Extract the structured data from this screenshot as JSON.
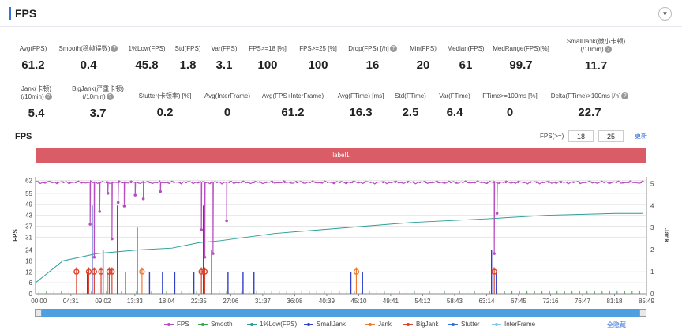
{
  "header": {
    "title": "FPS",
    "collapse_icon": "chevron-down-icon"
  },
  "stats_row1": [
    {
      "label": "Avg(FPS)",
      "value": "61.2",
      "help": false
    },
    {
      "label": "Smooth(稳帧得数)",
      "value": "0.4",
      "help": true
    },
    {
      "label": "1%Low(FPS)",
      "value": "45.8",
      "help": false
    },
    {
      "label": "Std(FPS)",
      "value": "1.8",
      "help": false
    },
    {
      "label": "Var(FPS)",
      "value": "3.1",
      "help": false
    },
    {
      "label": "FPS>=18 [%]",
      "value": "100",
      "help": false
    },
    {
      "label": "FPS>=25 [%]",
      "value": "100",
      "help": false
    },
    {
      "label": "Drop(FPS) [/h]",
      "value": "16",
      "help": true
    },
    {
      "label": "Min(FPS)",
      "value": "20",
      "help": false
    },
    {
      "label": "Median(FPS)",
      "value": "61",
      "help": false
    },
    {
      "label": "MedRange(FPS)[%]",
      "value": "99.7",
      "help": false
    },
    {
      "label": "SmallJank(微小卡顿)",
      "label2": "(/10min)",
      "value": "11.7",
      "help": true
    }
  ],
  "stats_row2": [
    {
      "label": "Jank(卡顿)",
      "label2": "(/10min)",
      "value": "5.4",
      "help": true
    },
    {
      "label": "BigJank(严重卡顿)",
      "label2": "(/10min)",
      "value": "3.7",
      "help": true
    },
    {
      "label": "Stutter(卡顿率) [%]",
      "value": "0.2",
      "help": false
    },
    {
      "label": "Avg(InterFrame)",
      "value": "0",
      "help": false
    },
    {
      "label": "Avg(FPS+InterFrame)",
      "value": "61.2",
      "help": false
    },
    {
      "label": "Avg(FTime) [ms]",
      "value": "16.3",
      "help": false
    },
    {
      "label": "Std(FTime)",
      "value": "2.5",
      "help": false
    },
    {
      "label": "Var(FTime)",
      "value": "6.4",
      "help": false
    },
    {
      "label": "FTime>=100ms [%]",
      "value": "0",
      "help": false
    },
    {
      "label": "Delta(FTime)>100ms [/h]",
      "value": "22.7",
      "help": true
    }
  ],
  "chart_title": "FPS",
  "threshold": {
    "label": "FPS(>=)",
    "v1": "18",
    "v2": "25",
    "update_label": "更新"
  },
  "label_band": "label1",
  "chart_data": {
    "type": "line",
    "y_left_label": "FPS",
    "y_right_label": "Jank",
    "y_left_ticks": [
      "0",
      "6",
      "12",
      "18",
      "24",
      "31",
      "37",
      "43",
      "49",
      "55",
      "62"
    ],
    "y_right_ticks": [
      "0",
      "1",
      "2",
      "3",
      "4",
      "5"
    ],
    "x_ticks": [
      "00:00",
      "04:31",
      "09:02",
      "13:33",
      "18:04",
      "22:35",
      "27:06",
      "31:37",
      "36:08",
      "40:39",
      "45:10",
      "49:41",
      "54:12",
      "58:43",
      "63:14",
      "67:45",
      "72:16",
      "76:47",
      "81:18",
      "85:49"
    ],
    "fps_baseline": 61,
    "fps_drops": [
      {
        "t": 8.0,
        "fps": 38
      },
      {
        "t": 8.6,
        "fps": 20
      },
      {
        "t": 9.4,
        "fps": 45
      },
      {
        "t": 10.6,
        "fps": 55
      },
      {
        "t": 11.2,
        "fps": 30
      },
      {
        "t": 12.1,
        "fps": 50
      },
      {
        "t": 13.0,
        "fps": 48
      },
      {
        "t": 14.6,
        "fps": 54
      },
      {
        "t": 15.8,
        "fps": 52
      },
      {
        "t": 18.3,
        "fps": 56
      },
      {
        "t": 24.3,
        "fps": 35
      },
      {
        "t": 24.8,
        "fps": 20
      },
      {
        "t": 26.0,
        "fps": 22
      },
      {
        "t": 28.0,
        "fps": 40
      },
      {
        "t": 67.2,
        "fps": 22
      },
      {
        "t": 67.6,
        "fps": 44
      }
    ],
    "low_1pct": [
      {
        "t": 0,
        "v": 6
      },
      {
        "t": 4,
        "v": 18
      },
      {
        "t": 9,
        "v": 22
      },
      {
        "t": 15,
        "v": 24
      },
      {
        "t": 20,
        "v": 25
      },
      {
        "t": 24,
        "v": 28
      },
      {
        "t": 27,
        "v": 29
      },
      {
        "t": 35,
        "v": 33
      },
      {
        "t": 45,
        "v": 36
      },
      {
        "t": 55,
        "v": 39
      },
      {
        "t": 66,
        "v": 41
      },
      {
        "t": 75,
        "v": 43
      },
      {
        "t": 85,
        "v": 44
      },
      {
        "t": 89,
        "v": 44
      }
    ],
    "jank_events": [
      {
        "t": 6.0,
        "type": "BigJank"
      },
      {
        "t": 7.8,
        "type": "BigJank"
      },
      {
        "t": 8.6,
        "type": "BigJank"
      },
      {
        "t": 9.6,
        "type": "BigJank"
      },
      {
        "t": 10.8,
        "type": "BigJank"
      },
      {
        "t": 11.2,
        "type": "BigJank"
      },
      {
        "t": 15.6,
        "type": "Jank"
      },
      {
        "t": 24.3,
        "type": "BigJank"
      },
      {
        "t": 24.8,
        "type": "BigJank"
      },
      {
        "t": 47.0,
        "type": "Jank"
      },
      {
        "t": 67.2,
        "type": "BigJank"
      }
    ],
    "small_jank_events": [
      {
        "t": 7.6,
        "v": 1
      },
      {
        "t": 8.3,
        "v": 4
      },
      {
        "t": 9.9,
        "v": 2
      },
      {
        "t": 10.5,
        "v": 1
      },
      {
        "t": 12.0,
        "v": 4
      },
      {
        "t": 13.2,
        "v": 1
      },
      {
        "t": 14.9,
        "v": 3
      },
      {
        "t": 16.7,
        "v": 1
      },
      {
        "t": 18.6,
        "v": 1
      },
      {
        "t": 20.4,
        "v": 1
      },
      {
        "t": 23.2,
        "v": 1
      },
      {
        "t": 24.6,
        "v": 4
      },
      {
        "t": 25.8,
        "v": 2
      },
      {
        "t": 28.2,
        "v": 1
      },
      {
        "t": 30.4,
        "v": 1
      },
      {
        "t": 32.0,
        "v": 1
      },
      {
        "t": 46.2,
        "v": 1
      },
      {
        "t": 47.9,
        "v": 1
      },
      {
        "t": 66.8,
        "v": 2
      },
      {
        "t": 67.5,
        "v": 1
      }
    ],
    "legend": [
      {
        "name": "FPS",
        "color": "#b84fc0"
      },
      {
        "name": "Smooth",
        "color": "#3aa54b"
      },
      {
        "name": "1%Low(FPS)",
        "color": "#2a9d97"
      },
      {
        "name": "SmallJank",
        "color": "#3040c8"
      },
      {
        "name": "Jank",
        "color": "#ee7a32"
      },
      {
        "name": "BigJank",
        "color": "#d9452e"
      },
      {
        "name": "Stutter",
        "color": "#2f6fd6"
      },
      {
        "name": "InterFrame",
        "color": "#7fc8ee"
      }
    ]
  },
  "show_all_label": "全隐藏"
}
